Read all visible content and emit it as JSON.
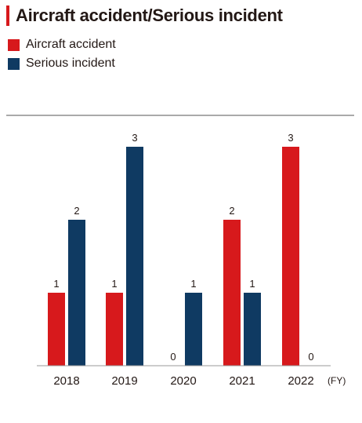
{
  "chart_data": {
    "type": "bar",
    "title": "Aircraft accident/Serious incident",
    "categories": [
      "2018",
      "2019",
      "2020",
      "2021",
      "2022"
    ],
    "series": [
      {
        "name": "Aircraft accident",
        "values": [
          1,
          1,
          0,
          2,
          3
        ],
        "color": "#d7191c"
      },
      {
        "name": "Serious incident",
        "values": [
          2,
          3,
          1,
          1,
          0
        ],
        "color": "#0f3a62"
      }
    ],
    "x_unit": "(FY)",
    "ylim": [
      0,
      3
    ],
    "grid": false,
    "legend_position": "top-left"
  }
}
